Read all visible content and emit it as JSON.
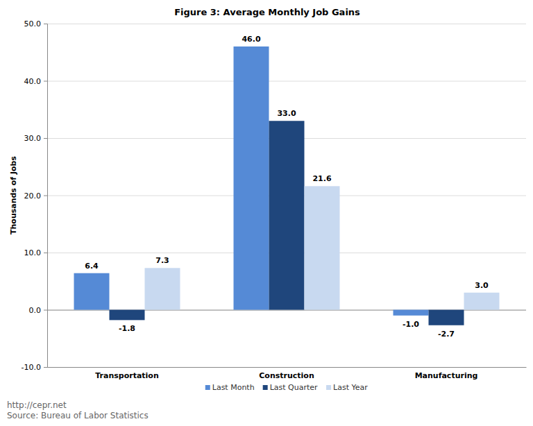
{
  "chart_data": {
    "type": "bar",
    "title": "Figure 3: Average Monthly Job Gains",
    "y_label": "Thousands of Jobs",
    "categories": [
      "Transportation",
      "Construction",
      "Manufacturing"
    ],
    "series": [
      {
        "name": "Last Month",
        "color": "#558ad6",
        "values": [
          6.4,
          46,
          -1
        ],
        "value_labels": [
          "6.4",
          "46.0",
          "-1.0"
        ]
      },
      {
        "name": "Last Quarter",
        "color": "#1f467c",
        "values": [
          -1.8,
          33,
          -2.7
        ],
        "value_labels": [
          "-1.8",
          "33.0",
          "-2.7"
        ]
      },
      {
        "name": "Last Year",
        "color": "#c8d9f0",
        "values": [
          7.3,
          21.6,
          3
        ],
        "value_labels": [
          "7.3",
          "21.6",
          "3.0"
        ]
      }
    ],
    "ylim": [
      -10,
      50
    ],
    "yticks": [
      {
        "value": -10,
        "label": "-10.0"
      },
      {
        "value": 0,
        "label": "0.0"
      },
      {
        "value": 10,
        "label": "10.0"
      },
      {
        "value": 20,
        "label": "20.0"
      },
      {
        "value": 30,
        "label": "30.0"
      },
      {
        "value": 40,
        "label": "40.0"
      },
      {
        "value": 50,
        "label": "50.0"
      }
    ],
    "grid": true,
    "legend": "bottom",
    "data_labels": true,
    "annotations": [
      "http://cepr.net",
      "Source: Bureau of Labor Statistics"
    ]
  }
}
